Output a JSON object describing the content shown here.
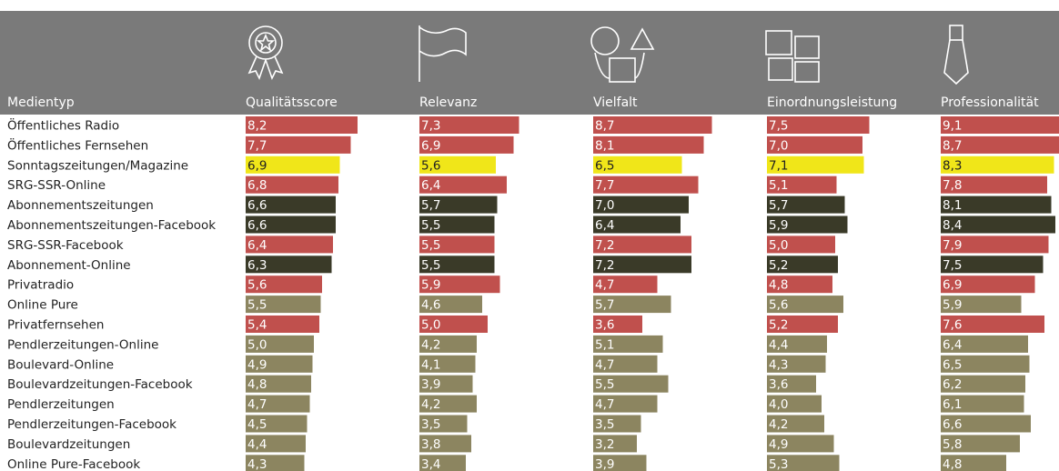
{
  "chart_data": {
    "type": "bar",
    "category_header": "Medientyp",
    "categories": [
      "Öffentliches Radio",
      "Öffentliches Fernsehen",
      "Sonntagszeitungen/Magazine",
      "SRG-SSR-Online",
      "Abonnementszeitungen",
      "Abonnementszeitungen-Facebook",
      "SRG-SSR-Facebook",
      "Abonnement-Online",
      "Privatradio",
      "Online Pure",
      "Privatfernsehen",
      "Pendlerzeitungen-Online",
      "Boulevard-Online",
      "Boulevardzeitungen-Facebook",
      "Pendlerzeitungen",
      "Pendlerzeitungen-Facebook",
      "Boulevardzeitungen",
      "Online Pure-Facebook"
    ],
    "colors": [
      "#c0504d",
      "#c0504d",
      "#f0e619",
      "#c0504d",
      "#3a3a28",
      "#3a3a28",
      "#c0504d",
      "#3a3a28",
      "#c0504d",
      "#8c8560",
      "#c0504d",
      "#8c8560",
      "#8c8560",
      "#8c8560",
      "#8c8560",
      "#8c8560",
      "#8c8560",
      "#8c8560"
    ],
    "series": [
      {
        "name": "Qualitätsscore",
        "values": [
          8.2,
          7.7,
          6.9,
          6.8,
          6.6,
          6.6,
          6.4,
          6.3,
          5.6,
          5.5,
          5.4,
          5.0,
          4.9,
          4.8,
          4.7,
          4.5,
          4.4,
          4.3
        ],
        "value_labels": [
          "8,2",
          "7,7",
          "6,9",
          "6,8",
          "6,6",
          "6,6",
          "6,4",
          "6,3",
          "5,6",
          "5,5",
          "5,4",
          "5,0",
          "4,9",
          "4,8",
          "4,7",
          "4,5",
          "4,4",
          "4,3"
        ]
      },
      {
        "name": "Relevanz",
        "values": [
          7.3,
          6.9,
          5.6,
          6.4,
          5.7,
          5.5,
          5.5,
          5.5,
          5.9,
          4.6,
          5.0,
          4.2,
          4.1,
          3.9,
          4.2,
          3.5,
          3.8,
          3.4
        ],
        "value_labels": [
          "7,3",
          "6,9",
          "5,6",
          "6,4",
          "5,7",
          "5,5",
          "5,5",
          "5,5",
          "5,9",
          "4,6",
          "5,0",
          "4,2",
          "4,1",
          "3,9",
          "4,2",
          "3,5",
          "3,8",
          "3,4"
        ]
      },
      {
        "name": "Vielfalt",
        "values": [
          8.7,
          8.1,
          6.5,
          7.7,
          7.0,
          6.4,
          7.2,
          7.2,
          4.7,
          5.7,
          3.6,
          5.1,
          4.7,
          5.5,
          4.7,
          3.5,
          3.2,
          3.9
        ],
        "value_labels": [
          "8,7",
          "8,1",
          "6,5",
          "7,7",
          "7,0",
          "6,4",
          "7,2",
          "7,2",
          "4,7",
          "5,7",
          "3,6",
          "5,1",
          "4,7",
          "5,5",
          "4,7",
          "3,5",
          "3,2",
          "3,9"
        ]
      },
      {
        "name": "Einordnungsleistung",
        "values": [
          7.5,
          7.0,
          7.1,
          5.1,
          5.7,
          5.9,
          5.0,
          5.2,
          4.8,
          5.6,
          5.2,
          4.4,
          4.3,
          3.6,
          4.0,
          4.2,
          4.9,
          5.3
        ],
        "value_labels": [
          "7,5",
          "7,0",
          "7,1",
          "5,1",
          "5,7",
          "5,9",
          "5,0",
          "5,2",
          "4,8",
          "5,6",
          "5,2",
          "4,4",
          "4,3",
          "3,6",
          "4,0",
          "4,2",
          "4,9",
          "5,3"
        ]
      },
      {
        "name": "Professionalität",
        "values": [
          9.1,
          8.7,
          8.3,
          7.8,
          8.1,
          8.4,
          7.9,
          7.5,
          6.9,
          5.9,
          7.6,
          6.4,
          6.5,
          6.2,
          6.1,
          6.6,
          5.8,
          4.8
        ],
        "value_labels": [
          "9,1",
          "8,7",
          "8,3",
          "7,8",
          "8,1",
          "8,4",
          "7,9",
          "7,5",
          "6,9",
          "5,9",
          "7,6",
          "6,4",
          "6,5",
          "6,2",
          "6,1",
          "6,6",
          "5,8",
          "4,8"
        ]
      }
    ]
  }
}
